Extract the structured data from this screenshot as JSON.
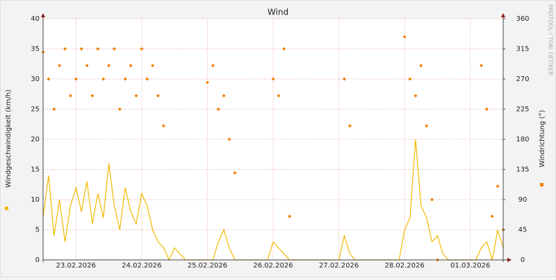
{
  "chart_data": {
    "type": "line-scatter",
    "title": "Wind",
    "categories": [
      null,
      null,
      null,
      null,
      null,
      null,
      "23.02.2026",
      null,
      null,
      null,
      null,
      null,
      null,
      null,
      null,
      null,
      null,
      null,
      "24.02.2026",
      null,
      null,
      null,
      null,
      null,
      null,
      null,
      null,
      null,
      null,
      null,
      "25.02.2026",
      null,
      null,
      null,
      null,
      null,
      null,
      null,
      null,
      null,
      null,
      null,
      "26.02.2026",
      null,
      null,
      null,
      null,
      null,
      null,
      null,
      null,
      null,
      null,
      null,
      "27.02.2026",
      null,
      null,
      null,
      null,
      null,
      null,
      null,
      null,
      null,
      null,
      null,
      "28.02.2026",
      null,
      null,
      null,
      null,
      null,
      null,
      null,
      null,
      null,
      null,
      null,
      "01.03.2026",
      null,
      null,
      null,
      null,
      null,
      null
    ],
    "series": [
      {
        "name": "Windgeschwindigkeit (km/h)",
        "color": "#f2b800",
        "axis": "y",
        "values": [
          7,
          14,
          4,
          10,
          3,
          9,
          12,
          8,
          13,
          6,
          11,
          7,
          16,
          9,
          5,
          12,
          8,
          6,
          11,
          9,
          5,
          3,
          2,
          0,
          2,
          1,
          0,
          0,
          0,
          0,
          0,
          0,
          3,
          5,
          2,
          0,
          0,
          0,
          0,
          0,
          0,
          0,
          3,
          2,
          1,
          0,
          0,
          0,
          0,
          0,
          0,
          0,
          0,
          0,
          0,
          4,
          1,
          0,
          0,
          0,
          0,
          0,
          0,
          0,
          0,
          0,
          5,
          7,
          20,
          9,
          7,
          3,
          4,
          1,
          0,
          0,
          0,
          0,
          0,
          0,
          2,
          3,
          0,
          5,
          2
        ]
      },
      {
        "name": "Windrichtung (°)",
        "color": "#f08000",
        "axis": "y2",
        "values": [
          310,
          270,
          225,
          290,
          315,
          245,
          270,
          315,
          290,
          245,
          315,
          270,
          290,
          315,
          225,
          270,
          290,
          245,
          315,
          270,
          290,
          245,
          200,
          null,
          null,
          null,
          null,
          null,
          null,
          null,
          265,
          290,
          225,
          245,
          180,
          130,
          null,
          null,
          null,
          null,
          null,
          null,
          270,
          245,
          315,
          65,
          null,
          null,
          null,
          null,
          null,
          null,
          null,
          null,
          null,
          270,
          200,
          null,
          null,
          null,
          null,
          null,
          null,
          null,
          null,
          null,
          333,
          270,
          245,
          290,
          200,
          90,
          0,
          null,
          null,
          null,
          null,
          null,
          null,
          null,
          290,
          225,
          65,
          110,
          45
        ]
      }
    ],
    "ylim": [
      0,
      40
    ],
    "yticks": [
      0,
      5,
      10,
      15,
      20,
      25,
      30,
      35,
      40
    ],
    "y2lim": [
      0,
      360
    ],
    "y2ticks": [
      0,
      45,
      90,
      135,
      180,
      225,
      270,
      315,
      360
    ],
    "grid": true
  },
  "watermark": "RRDTOOL / TOBI OETIKER"
}
